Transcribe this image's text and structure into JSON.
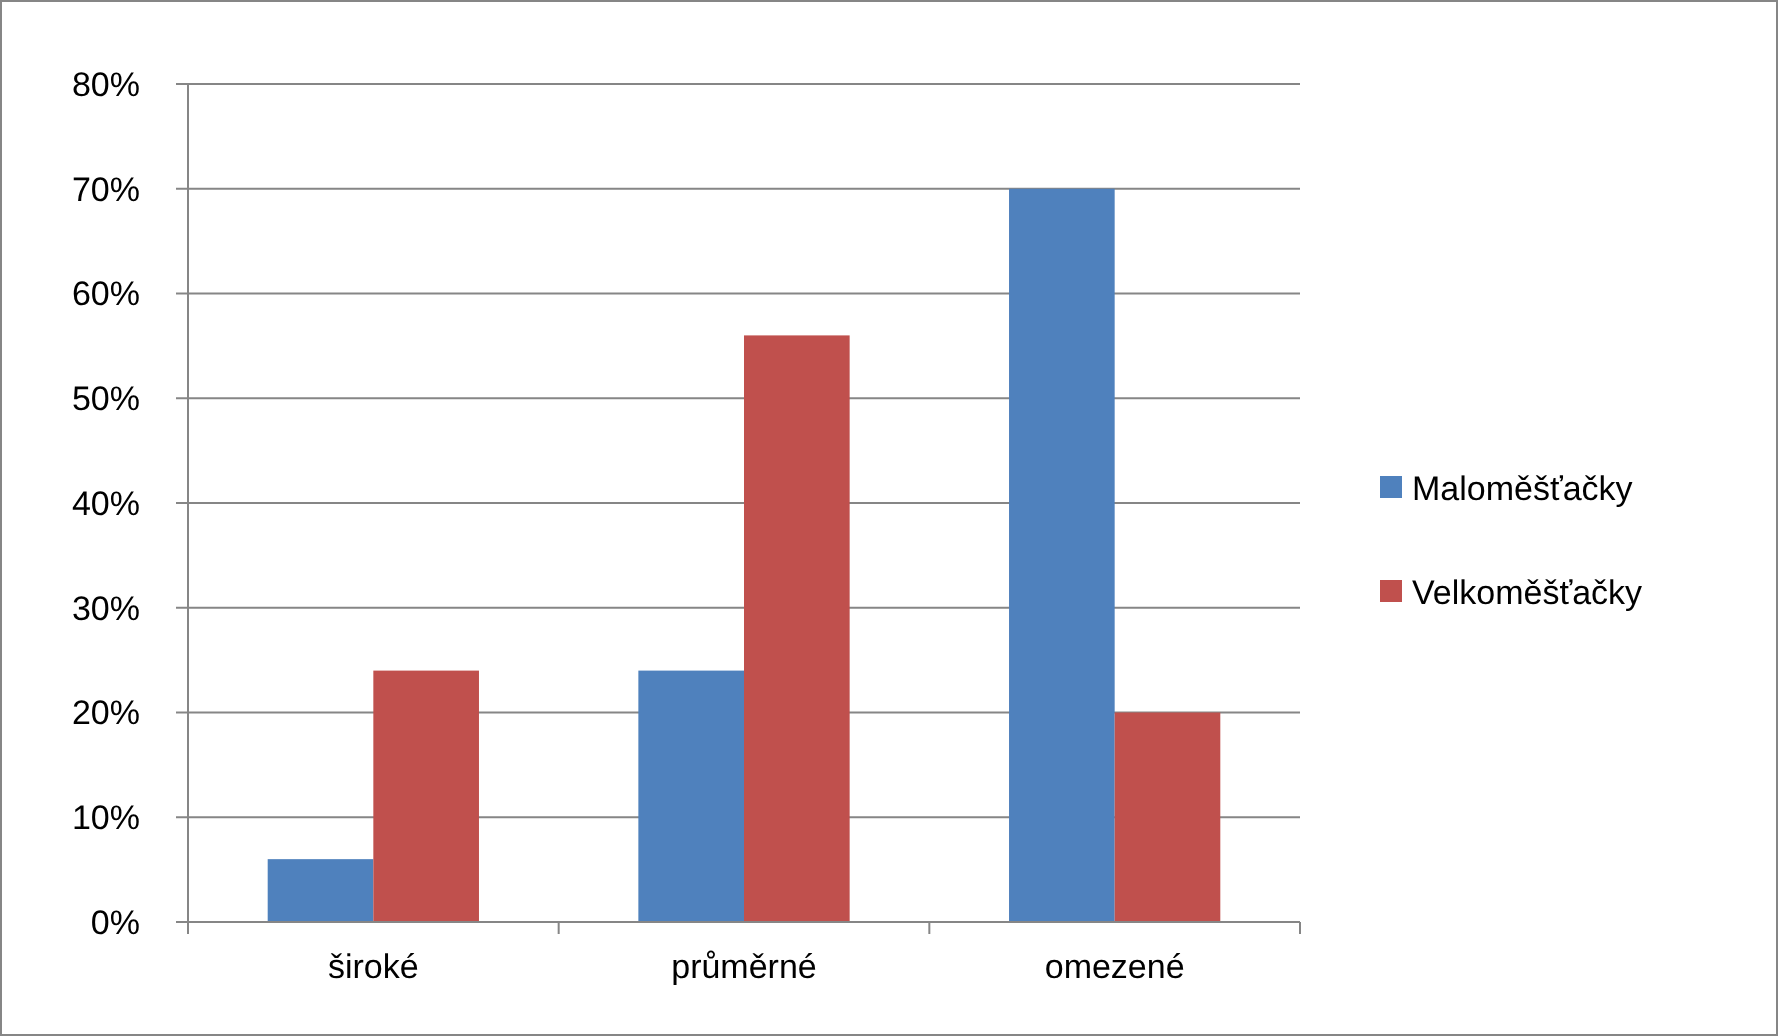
{
  "chart_data": {
    "type": "bar",
    "categories": [
      "široké",
      "průměrné",
      "omezené"
    ],
    "series": [
      {
        "name": "Maloměšťačky",
        "color": "#4f81bd",
        "values": [
          6,
          24,
          70
        ]
      },
      {
        "name": "Velkoměšťačky",
        "color": "#c0504d",
        "values": [
          24,
          56,
          20
        ]
      }
    ],
    "ylim": [
      0,
      80
    ],
    "yticks": [
      {
        "value": 0,
        "label": "0%"
      },
      {
        "value": 10,
        "label": "10%"
      },
      {
        "value": 20,
        "label": "20%"
      },
      {
        "value": 30,
        "label": "30%"
      },
      {
        "value": 40,
        "label": "40%"
      },
      {
        "value": 50,
        "label": "50%"
      },
      {
        "value": 60,
        "label": "60%"
      },
      {
        "value": 70,
        "label": "70%"
      },
      {
        "value": 80,
        "label": "80%"
      }
    ],
    "grid": "y",
    "legend": "right"
  }
}
